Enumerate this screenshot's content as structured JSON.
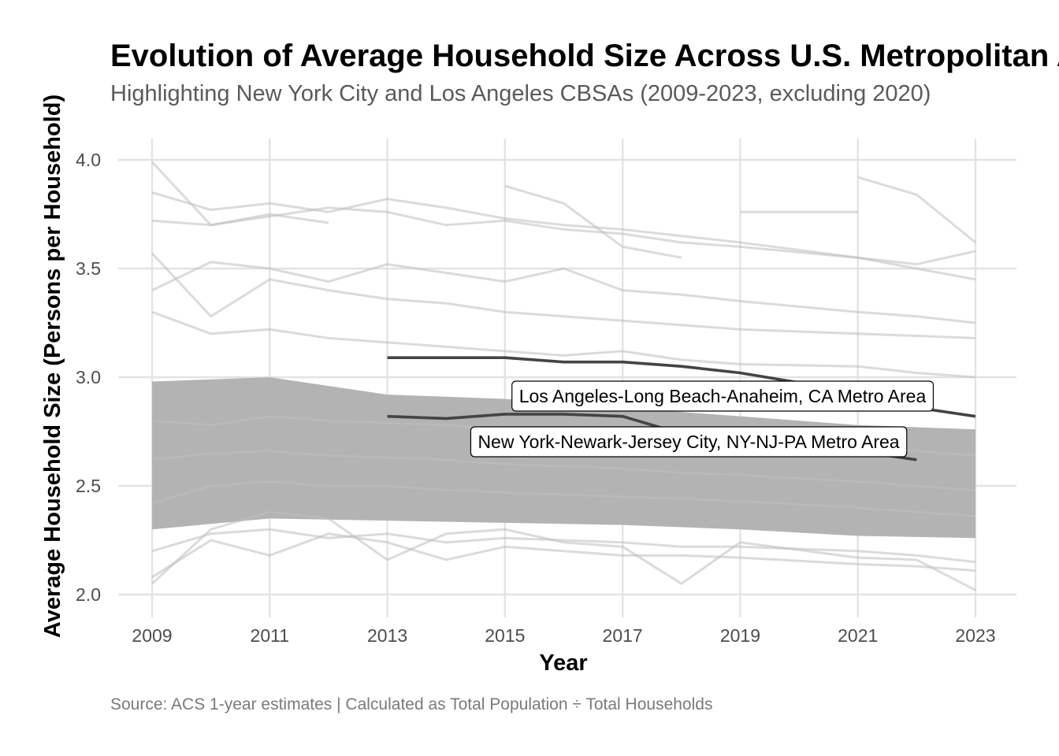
{
  "chart_data": {
    "type": "line",
    "title": "Evolution of Average Household Size Across U.S. Metropolitan Areas",
    "subtitle": "Highlighting New York City and Los Angeles CBSAs (2009-2023, excluding 2020)",
    "xlabel": "Year",
    "ylabel": "Average Household Size (Persons per Household)",
    "caption": "Source: ACS 1-year estimates | Calculated as Total Population ÷ Total Households",
    "xlim": [
      2009,
      2023
    ],
    "ylim": [
      2.0,
      4.0
    ],
    "x_ticks": [
      "2009",
      "2011",
      "2013",
      "2015",
      "2017",
      "2019",
      "2021",
      "2023"
    ],
    "y_ticks": [
      "2.0",
      "2.5",
      "3.0",
      "3.5",
      "4.0"
    ],
    "grid": true,
    "legend": "none",
    "colors": {
      "background_series": "#bdbdbd",
      "highlight_series": "#444444",
      "grid": "#e3e3e3"
    },
    "background_series_sample": [
      {
        "x": [
          2009,
          2010,
          2011,
          2012
        ],
        "values": [
          3.72,
          3.7,
          3.75,
          3.71
        ]
      },
      {
        "x": [
          2009,
          2010,
          2011,
          2012,
          2013,
          2014,
          2015,
          2016,
          2017,
          2018,
          2019,
          2021,
          2022,
          2023
        ],
        "values": [
          3.85,
          3.77,
          3.8,
          3.76,
          3.82,
          3.78,
          3.73,
          3.7,
          3.68,
          3.65,
          3.62,
          3.55,
          3.52,
          3.58
        ]
      },
      {
        "x": [
          2009,
          2010,
          2011,
          2012,
          2013,
          2014,
          2015,
          2016,
          2017,
          2018,
          2019,
          2021,
          2022,
          2023
        ],
        "values": [
          3.99,
          3.7,
          3.74,
          3.78,
          3.76,
          3.7,
          3.72,
          3.68,
          3.66,
          3.62,
          3.6,
          3.55,
          3.5,
          3.45
        ]
      },
      {
        "x": [
          2015,
          2016,
          2017,
          2018
        ],
        "values": [
          3.88,
          3.8,
          3.6,
          3.55
        ]
      },
      {
        "x": [
          2019,
          2021
        ],
        "values": [
          3.76,
          3.76
        ]
      },
      {
        "x": [
          2021,
          2022,
          2023
        ],
        "values": [
          3.92,
          3.84,
          3.62
        ]
      },
      {
        "x": [
          2009,
          2010,
          2011,
          2012,
          2013,
          2014,
          2015,
          2016,
          2017,
          2018,
          2019,
          2021,
          2022,
          2023
        ],
        "values": [
          3.57,
          3.28,
          3.45,
          3.4,
          3.36,
          3.34,
          3.3,
          3.28,
          3.26,
          3.24,
          3.22,
          3.2,
          3.19,
          3.18
        ]
      },
      {
        "x": [
          2009,
          2010,
          2011,
          2012,
          2013,
          2014,
          2015,
          2016,
          2017,
          2018,
          2019,
          2021,
          2022,
          2023
        ],
        "values": [
          3.4,
          3.53,
          3.5,
          3.44,
          3.52,
          3.48,
          3.44,
          3.5,
          3.4,
          3.38,
          3.35,
          3.3,
          3.28,
          3.25
        ]
      },
      {
        "x": [
          2009,
          2010,
          2011,
          2012,
          2013,
          2014,
          2015,
          2016,
          2017,
          2018,
          2019,
          2021,
          2022,
          2023
        ],
        "values": [
          3.3,
          3.2,
          3.22,
          3.18,
          3.16,
          3.14,
          3.12,
          3.1,
          3.12,
          3.08,
          3.06,
          3.05,
          3.02,
          3.0
        ]
      },
      {
        "x": [
          2009,
          2010,
          2011,
          2012,
          2013,
          2014,
          2015,
          2016,
          2017,
          2018,
          2019,
          2021,
          2022,
          2023
        ],
        "values": [
          2.05,
          2.3,
          2.38,
          2.35,
          2.16,
          2.28,
          2.3,
          2.24,
          2.22,
          2.05,
          2.24,
          2.17,
          2.16,
          2.02
        ]
      },
      {
        "x": [
          2009,
          2010,
          2011,
          2012,
          2013,
          2014,
          2015,
          2016,
          2017,
          2018,
          2019,
          2021,
          2022,
          2023
        ],
        "values": [
          2.08,
          2.25,
          2.18,
          2.28,
          2.24,
          2.16,
          2.22,
          2.2,
          2.18,
          2.18,
          2.17,
          2.14,
          2.13,
          2.11
        ]
      },
      {
        "x": [
          2009,
          2010,
          2011,
          2012,
          2013,
          2014,
          2015,
          2016,
          2017,
          2018,
          2019,
          2021,
          2022,
          2023
        ],
        "values": [
          2.2,
          2.28,
          2.3,
          2.26,
          2.28,
          2.24,
          2.26,
          2.25,
          2.24,
          2.22,
          2.22,
          2.2,
          2.18,
          2.15
        ]
      },
      {
        "x": [
          2009,
          2010,
          2011,
          2012,
          2013,
          2014,
          2015,
          2016,
          2017,
          2018,
          2019,
          2021,
          2022,
          2023
        ],
        "values": [
          2.42,
          2.5,
          2.52,
          2.5,
          2.5,
          2.48,
          2.47,
          2.46,
          2.45,
          2.44,
          2.43,
          2.4,
          2.38,
          2.36
        ]
      },
      {
        "x": [
          2009,
          2010,
          2011,
          2012,
          2013,
          2014,
          2015,
          2016,
          2017,
          2018,
          2019,
          2021,
          2022,
          2023
        ],
        "values": [
          2.62,
          2.65,
          2.66,
          2.64,
          2.63,
          2.62,
          2.6,
          2.59,
          2.58,
          2.56,
          2.55,
          2.52,
          2.5,
          2.48
        ]
      },
      {
        "x": [
          2009,
          2010,
          2011,
          2012,
          2013,
          2014,
          2015,
          2016,
          2017,
          2018,
          2019,
          2021,
          2022,
          2023
        ],
        "values": [
          2.8,
          2.78,
          2.82,
          2.8,
          2.79,
          2.78,
          2.76,
          2.75,
          2.74,
          2.72,
          2.71,
          2.68,
          2.66,
          2.64
        ]
      }
    ],
    "series": [
      {
        "name": "Los Angeles-Long Beach-Anaheim, CA Metro Area",
        "x": [
          2013,
          2014,
          2015,
          2016,
          2017,
          2018,
          2019,
          2021,
          2022,
          2023
        ],
        "values": [
          3.09,
          3.09,
          3.09,
          3.07,
          3.07,
          3.05,
          3.02,
          2.93,
          2.86,
          2.82
        ]
      },
      {
        "name": "New York-Newark-Jersey City, NY-NJ-PA Metro Area",
        "x": [
          2013,
          2014,
          2015,
          2016,
          2017,
          2018,
          2019,
          2021,
          2022
        ],
        "values": [
          2.82,
          2.81,
          2.83,
          2.83,
          2.82,
          2.74,
          2.71,
          2.66,
          2.62
        ]
      }
    ],
    "annotations": [
      {
        "text": "Los Angeles-Long Beach-Anaheim, CA Metro Area",
        "series": 0
      },
      {
        "text": "New York-Newark-Jersey City, NY-NJ-PA Metro Area",
        "series": 1
      }
    ]
  }
}
